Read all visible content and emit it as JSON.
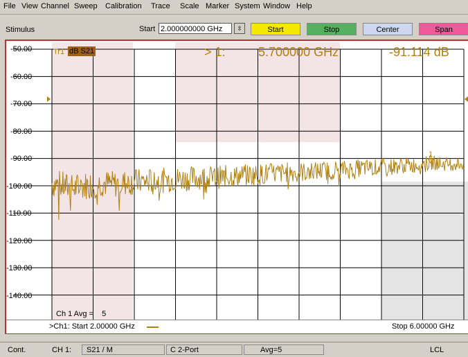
{
  "menu": [
    "File",
    "View",
    "Channel",
    "Sweep",
    "Calibration",
    "Trace",
    "Scale",
    "Marker",
    "System",
    "Window",
    "Help"
  ],
  "toolbar": {
    "stimulus_label": "Stimulus",
    "start_label": "Start",
    "start_value": "2.000000000 GHz",
    "buttons": [
      "Start",
      "Stop",
      "Center",
      "Span"
    ],
    "button_colors": [
      "#f4e800",
      "#55b060",
      "#cdd8f0",
      "#f05a9a"
    ]
  },
  "trace": {
    "label": "Tr1",
    "format": "dB S21",
    "color": "#b08010"
  },
  "marker": {
    "index": "> 1:",
    "freq": "5.700000 GHz",
    "value": "-91.114 dB",
    "flag": "1"
  },
  "axis": {
    "y_labels": [
      "-50.00",
      "-60.00",
      "-70.00",
      "-80.00",
      "-90.00",
      "-100.00",
      "-110.00",
      "-120.00",
      "-130.00",
      "-140.00",
      "-150.00"
    ]
  },
  "channel": {
    "avg_label": "Ch 1 Avg =",
    "avg_value": "5",
    "start_text": ">Ch1: Start  2.00000 GHz",
    "stop_text": "Stop  6.00000 GHz"
  },
  "status": {
    "mode": "Cont.",
    "ch": "CH 1:",
    "param": "S21 / M",
    "cal": "C  2-Port",
    "avg": "Avg=5",
    "lcl": "LCL"
  },
  "chart_data": {
    "type": "line",
    "xlim": [
      2.0,
      6.0
    ],
    "ylim": [
      -150,
      -50
    ],
    "xlabel": "",
    "ylabel": "",
    "series": [
      {
        "x": [
          2.0,
          2.1,
          2.2,
          2.3,
          2.4,
          2.5,
          2.6,
          2.7,
          2.8,
          2.9,
          3.0,
          3.1,
          3.2,
          3.3,
          3.4,
          3.5,
          3.6,
          3.7,
          3.8,
          3.9,
          4.0,
          4.1,
          4.2,
          4.3,
          4.4,
          4.5,
          4.6,
          4.7,
          4.8,
          4.9,
          5.0,
          5.1,
          5.2,
          5.3,
          5.4,
          5.5,
          5.6,
          5.7,
          5.8,
          5.9,
          6.0
        ],
        "values": [
          -99,
          -100,
          -101,
          -100,
          -99.5,
          -99,
          -99.5,
          -99,
          -98.5,
          -98.5,
          -98,
          -98,
          -97.5,
          -97.5,
          -97,
          -97,
          -97,
          -96.5,
          -96.5,
          -96,
          -96,
          -95.5,
          -95.5,
          -95,
          -95,
          -95,
          -94.5,
          -94.5,
          -94,
          -94,
          -93.5,
          -93.5,
          -93,
          -93,
          -92.5,
          -92.5,
          -92,
          -91.5,
          -92,
          -92,
          -92
        ]
      }
    ]
  }
}
